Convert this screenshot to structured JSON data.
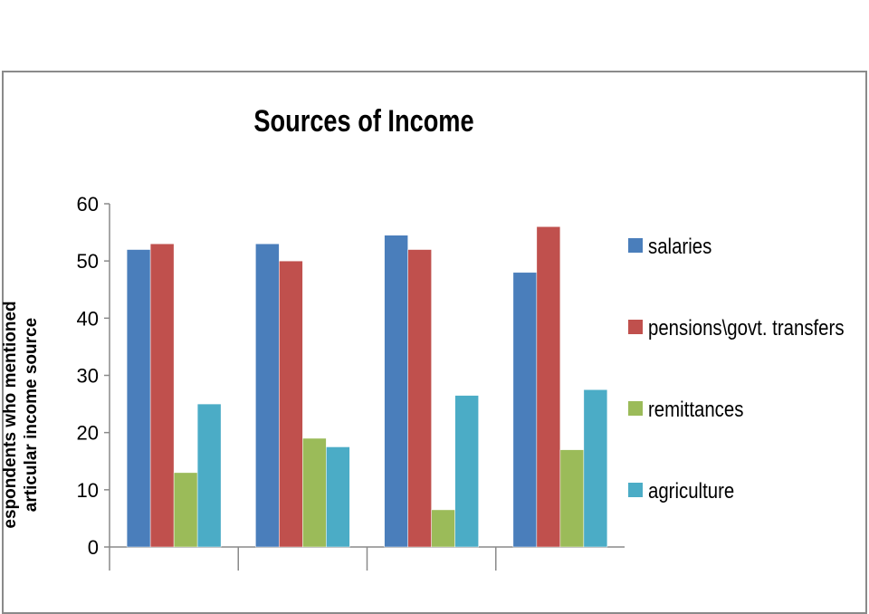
{
  "chart_data": {
    "type": "bar",
    "title": "Sources of Income",
    "ylabel_line1": "espondents who mentioned",
    "ylabel_line2": "articular income source",
    "xlabel": "",
    "ylim": [
      0,
      60
    ],
    "y_ticks": [
      "0",
      "10",
      "20",
      "30",
      "40",
      "50",
      "60"
    ],
    "categories": [
      "",
      "",
      "",
      ""
    ],
    "series": [
      {
        "name": "salaries",
        "color": "#4a7ebb",
        "values": [
          52,
          53,
          54.5,
          48
        ]
      },
      {
        "name": "pensions\\govt. transfers",
        "color": "#c0504d",
        "values": [
          53,
          50,
          52,
          56
        ]
      },
      {
        "name": "remittances",
        "color": "#9bbb59",
        "values": [
          13,
          19,
          6.5,
          17
        ]
      },
      {
        "name": "agriculture",
        "color": "#4bacc6",
        "values": [
          25,
          17.5,
          26.5,
          27.5
        ]
      }
    ],
    "grid": false,
    "legend": "right"
  }
}
